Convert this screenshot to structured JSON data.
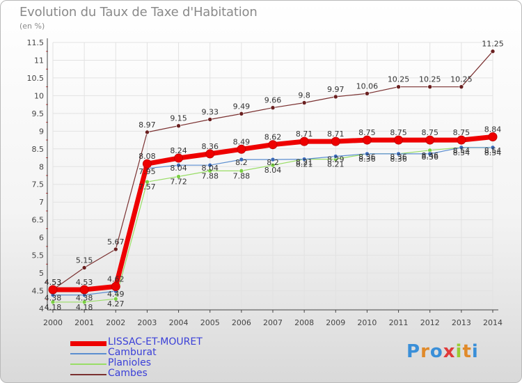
{
  "title": "Evolution du Taux de Taxe d'Habitation",
  "subtitle": "(en %)",
  "brand": "Proxiti",
  "chart_data": {
    "type": "line",
    "title": "Evolution du Taux de Taxe d'Habitation",
    "ylabel": "(en %)",
    "xlabel": "",
    "ylim": [
      4,
      11.5
    ],
    "yticks": [
      "4",
      "4.5",
      "5",
      "5.5",
      "6",
      "6.5",
      "7",
      "7.5",
      "8",
      "8.5",
      "9",
      "9.5",
      "10",
      "10.5",
      "11",
      "11.5"
    ],
    "categories": [
      "2000",
      "2001",
      "2002",
      "2003",
      "2004",
      "2005",
      "2006",
      "2007",
      "2008",
      "2009",
      "2010",
      "2011",
      "2012",
      "2013",
      "2014"
    ],
    "series": [
      {
        "name": "LISSAC-ET-MOURET",
        "color": "#ee0000",
        "values": [
          4.53,
          4.53,
          4.62,
          8.08,
          8.24,
          8.36,
          8.49,
          8.62,
          8.71,
          8.71,
          8.75,
          8.75,
          8.75,
          8.75,
          8.84
        ],
        "labels": [
          "4.53",
          "4.53",
          "4.62",
          "8.08",
          "8.24",
          "8.36",
          "8.49",
          "8.62",
          "8.71",
          "8.71",
          "8.75",
          "8.75",
          "8.75",
          "8.75",
          "8.84"
        ]
      },
      {
        "name": "Camburat",
        "color": "#5b8ed0",
        "values": [
          4.38,
          4.38,
          4.49,
          7.95,
          8.04,
          8.04,
          8.2,
          8.2,
          8.21,
          8.29,
          8.36,
          8.36,
          8.36,
          8.54,
          8.54
        ],
        "labels": [
          "4.38",
          "4.38",
          "4.49",
          "7.95",
          "8.04",
          "8.04",
          "8.2",
          "8.2",
          "8.21",
          "8.29",
          "8.36",
          "8.36",
          "8.36",
          "8.54",
          "8.54"
        ]
      },
      {
        "name": "Planioles",
        "color": "#99dd66",
        "values": [
          4.18,
          4.18,
          4.27,
          7.57,
          7.72,
          7.88,
          7.88,
          8.04,
          8.21,
          8.21,
          8.36,
          8.36,
          8.46,
          8.54,
          8.54
        ],
        "labels": [
          "4.18",
          "4.18",
          "4.27",
          "7.57",
          "7.72",
          "7.88",
          "7.88",
          "8.04",
          "8.21",
          "8.21",
          "8.36",
          "8.36",
          "8.46",
          "8.54",
          "8.54"
        ]
      },
      {
        "name": "Cambes",
        "color": "#7a3030",
        "values": [
          4.53,
          5.15,
          5.67,
          8.97,
          9.15,
          9.33,
          9.49,
          9.66,
          9.8,
          9.97,
          10.06,
          10.25,
          10.25,
          10.25,
          11.25
        ],
        "labels": [
          "4.53",
          "5.15",
          "5.67",
          "8.97",
          "9.15",
          "9.33",
          "9.49",
          "9.66",
          "9.8",
          "9.97",
          "10.06",
          "10.25",
          "10.25",
          "10.25",
          "11.25"
        ]
      }
    ]
  }
}
